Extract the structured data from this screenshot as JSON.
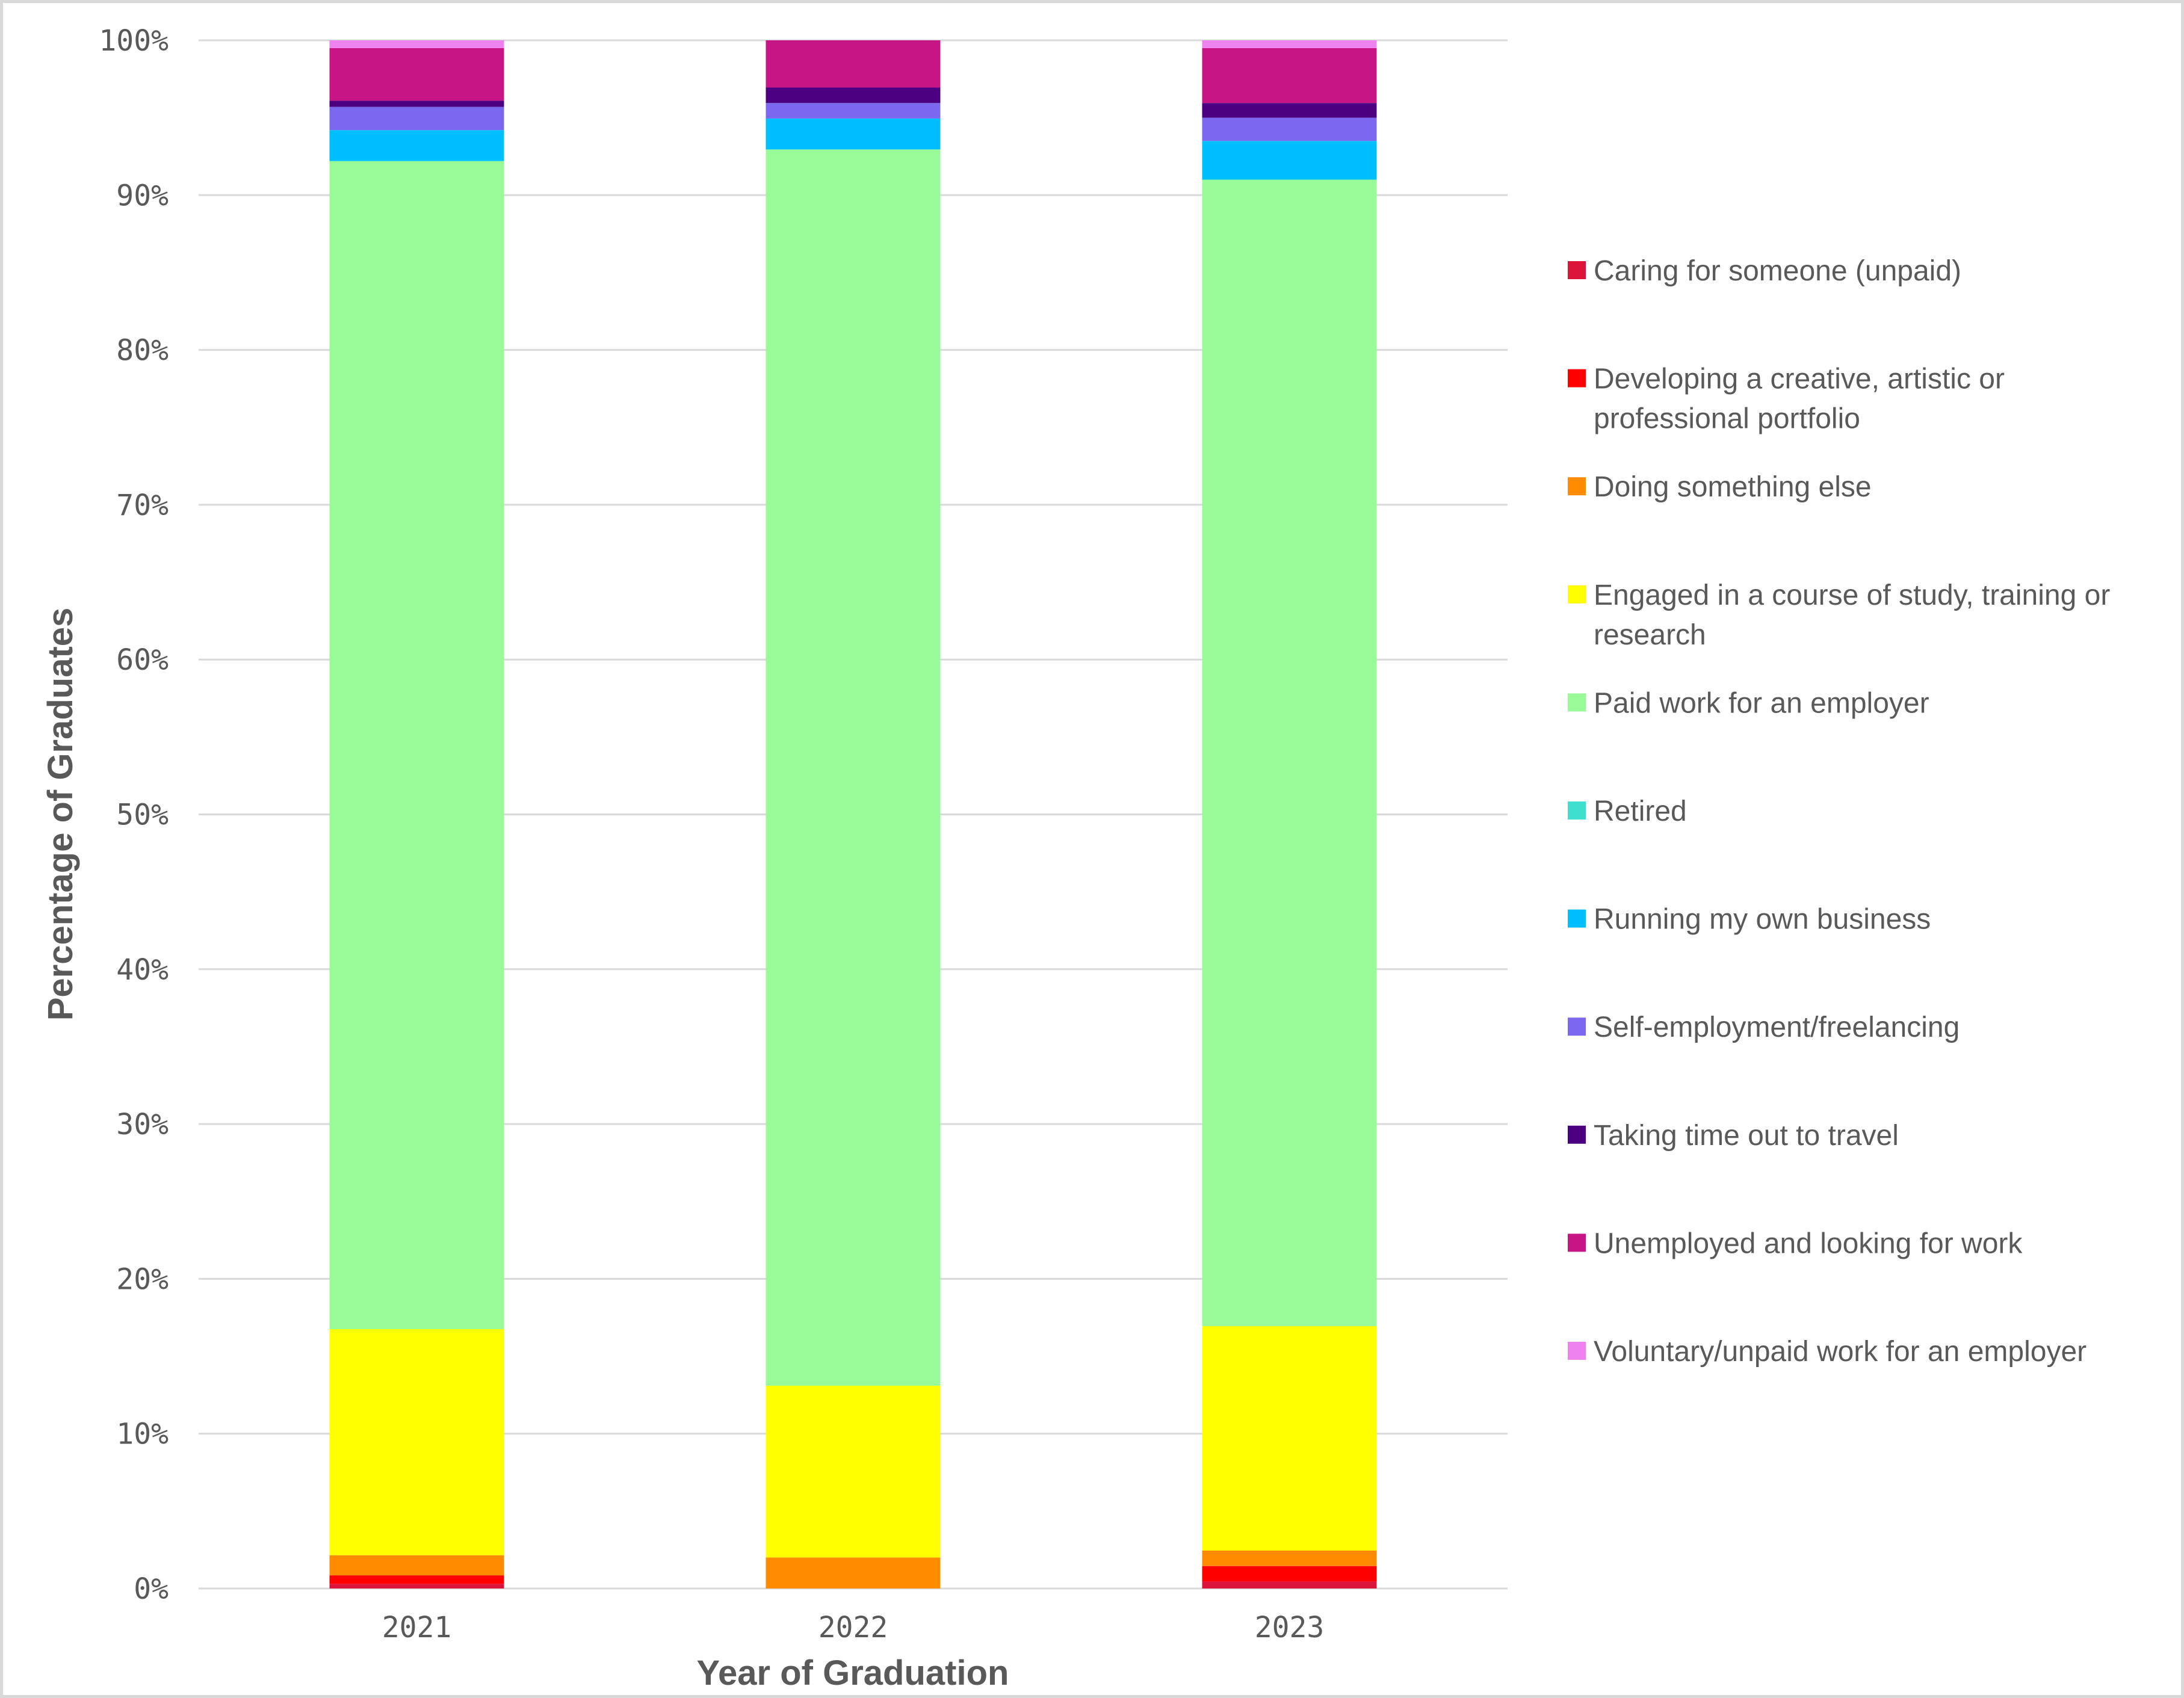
{
  "chart_data": {
    "type": "bar",
    "stacked": true,
    "percent_stacked": true,
    "title": "",
    "xlabel": "Year of Graduation",
    "ylabel": "Percentage of Graduates",
    "categories": [
      "2021",
      "2022",
      "2023"
    ],
    "ylim": [
      0,
      100
    ],
    "yticks": [
      "0%",
      "10%",
      "20%",
      "30%",
      "40%",
      "50%",
      "60%",
      "70%",
      "80%",
      "90%",
      "100%"
    ],
    "grid": true,
    "legend_position": "right",
    "series": [
      {
        "name": "Caring for someone (unpaid)",
        "color": "#DC143C",
        "values": [
          0.3,
          0.0,
          0.45
        ]
      },
      {
        "name": "Developing a creative, artistic or professional portfolio",
        "color": "#FF0000",
        "values": [
          0.55,
          0.0,
          1.0
        ]
      },
      {
        "name": "Doing something else",
        "color": "#FF8C00",
        "values": [
          1.3,
          2.0,
          1.0
        ]
      },
      {
        "name": "Engaged in a course of study, training or research",
        "color": "#FFFF00",
        "values": [
          14.6,
          11.1,
          14.5
        ]
      },
      {
        "name": "Paid work for an employer",
        "color": "#98FB98",
        "values": [
          75.45,
          79.85,
          74.05
        ]
      },
      {
        "name": "Retired",
        "color": "#40E0D0",
        "values": [
          0.0,
          0.0,
          0.0
        ]
      },
      {
        "name": "Running my own business",
        "color": "#00BFFF",
        "values": [
          2.0,
          2.0,
          2.5
        ]
      },
      {
        "name": "Self-employment/freelancing",
        "color": "#7B68EE",
        "values": [
          1.5,
          1.0,
          1.5
        ]
      },
      {
        "name": "Taking time out to travel",
        "color": "#4B0082",
        "values": [
          0.4,
          1.0,
          0.95
        ]
      },
      {
        "name": "Unemployed and looking for work",
        "color": "#C71585",
        "values": [
          3.4,
          3.05,
          3.55
        ]
      },
      {
        "name": "Voluntary/unpaid work for an employer",
        "color": "#EE82EE",
        "values": [
          0.5,
          0.0,
          0.5
        ]
      }
    ]
  },
  "legend": {
    "items": [
      {
        "lines": [
          "Caring for someone (unpaid)"
        ]
      },
      {
        "lines": [
          "Developing a creative, artistic or",
          "professional portfolio"
        ]
      },
      {
        "lines": [
          "Doing something else"
        ]
      },
      {
        "lines": [
          "Engaged in a course of study, training or",
          "research"
        ]
      },
      {
        "lines": [
          "Paid work for an employer"
        ]
      },
      {
        "lines": [
          "Retired"
        ]
      },
      {
        "lines": [
          "Running my own business"
        ]
      },
      {
        "lines": [
          "Self-employment/freelancing"
        ]
      },
      {
        "lines": [
          "Taking time out to travel"
        ]
      },
      {
        "lines": [
          "Unemployed and looking for work"
        ]
      },
      {
        "lines": [
          "Voluntary/unpaid work for an employer"
        ]
      }
    ]
  },
  "colors": {
    "text": "#595959",
    "grid": "#d9d9d9",
    "border": "#d9d9d9"
  }
}
